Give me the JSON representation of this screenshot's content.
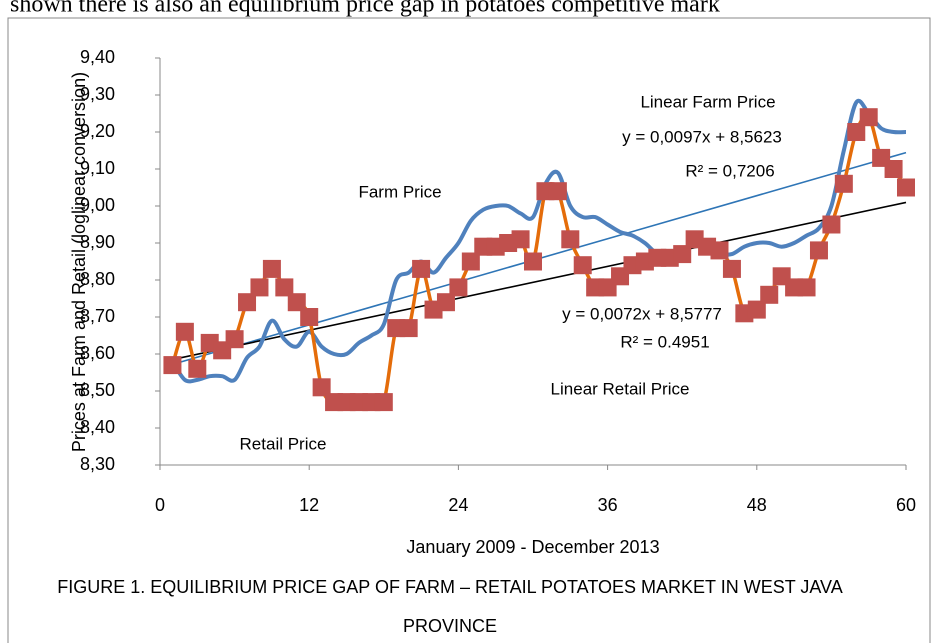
{
  "page_text": "shown there is also an equilibrium price gap in potatoes competitive mark",
  "chart_data": {
    "type": "line",
    "ylabel": "Prices at Farm and Retail (loglinear conversion)",
    "xlabel": "January 2009 - December 2013",
    "caption": [
      "FIGURE 1. EQUILIBRIUM PRICE GAP OF FARM – RETAIL POTATOES MARKET IN WEST JAVA",
      "PROVINCE"
    ],
    "annotations": [
      "y = 0,0097x + 8,5623",
      "R² = 0,7206",
      "y = 0,0072x + 8,5777",
      "R² = 0.4951"
    ],
    "xlim": [
      0,
      60
    ],
    "xticks": [
      0,
      12,
      24,
      36,
      48,
      60
    ],
    "ylim": [
      8.3,
      9.4
    ],
    "yticks": [
      {
        "value": 8.3,
        "label": "8,30"
      },
      {
        "value": 8.4,
        "label": "8,40"
      },
      {
        "value": 8.5,
        "label": "8,50"
      },
      {
        "value": 8.6,
        "label": "8,60"
      },
      {
        "value": 8.7,
        "label": "8,70"
      },
      {
        "value": 8.8,
        "label": "8,80"
      },
      {
        "value": 8.9,
        "label": "8,90"
      },
      {
        "value": 9.0,
        "label": "9,00"
      },
      {
        "value": 9.1,
        "label": "9,10"
      },
      {
        "value": 9.2,
        "label": "9,20"
      },
      {
        "value": 9.3,
        "label": "9,30"
      },
      {
        "value": 9.4,
        "label": "9,40"
      }
    ],
    "x": [
      1,
      2,
      3,
      4,
      5,
      6,
      7,
      8,
      9,
      10,
      11,
      12,
      13,
      14,
      15,
      16,
      17,
      18,
      19,
      20,
      21,
      22,
      23,
      24,
      25,
      26,
      27,
      28,
      29,
      30,
      31,
      32,
      33,
      34,
      35,
      36,
      37,
      38,
      39,
      40,
      41,
      42,
      43,
      44,
      45,
      46,
      47,
      48,
      49,
      50,
      51,
      52,
      53,
      54,
      55,
      56,
      57,
      58,
      59,
      60
    ],
    "series": [
      {
        "name": "Farm Price",
        "color": "#4f81bd",
        "style": "smooth",
        "values": [
          8.58,
          8.53,
          8.53,
          8.54,
          8.54,
          8.53,
          8.59,
          8.62,
          8.69,
          8.64,
          8.62,
          8.66,
          8.62,
          8.6,
          8.6,
          8.63,
          8.65,
          8.68,
          8.8,
          8.82,
          8.85,
          8.82,
          8.86,
          8.9,
          8.96,
          8.99,
          9.0,
          9.0,
          8.98,
          8.97,
          9.06,
          9.09,
          9.0,
          8.97,
          8.97,
          8.95,
          8.93,
          8.92,
          8.9,
          8.87,
          8.86,
          8.87,
          8.9,
          8.88,
          8.87,
          8.87,
          8.89,
          8.9,
          8.9,
          8.89,
          8.9,
          8.92,
          8.94,
          9.0,
          9.15,
          9.28,
          9.25,
          9.21,
          9.2,
          9.2
        ]
      },
      {
        "name": "Retail Price",
        "color": "#e46c0a",
        "marker_color": "#c0504d",
        "style": "markers",
        "values": [
          8.57,
          8.66,
          8.56,
          8.63,
          8.61,
          8.64,
          8.74,
          8.78,
          8.83,
          8.78,
          8.74,
          8.7,
          8.51,
          8.47,
          8.47,
          8.47,
          8.47,
          8.47,
          8.67,
          8.67,
          8.83,
          8.72,
          8.74,
          8.78,
          8.85,
          8.89,
          8.89,
          8.9,
          8.91,
          8.85,
          9.04,
          9.04,
          8.91,
          8.84,
          8.78,
          8.78,
          8.81,
          8.84,
          8.85,
          8.86,
          8.86,
          8.87,
          8.91,
          8.89,
          8.88,
          8.83,
          8.71,
          8.72,
          8.76,
          8.81,
          8.78,
          8.78,
          8.88,
          8.95,
          9.06,
          9.2,
          9.24,
          9.13,
          9.1,
          9.05
        ]
      },
      {
        "name": "Linear Farm Price",
        "color": "#2e75b6",
        "style": "trend",
        "x": [
          1,
          60
        ],
        "values": [
          8.572,
          9.1443
        ]
      },
      {
        "name": "Linear Retail Price",
        "color": "#000000",
        "style": "trend",
        "x": [
          1,
          60
        ],
        "values": [
          8.5849,
          9.0097
        ]
      }
    ]
  }
}
